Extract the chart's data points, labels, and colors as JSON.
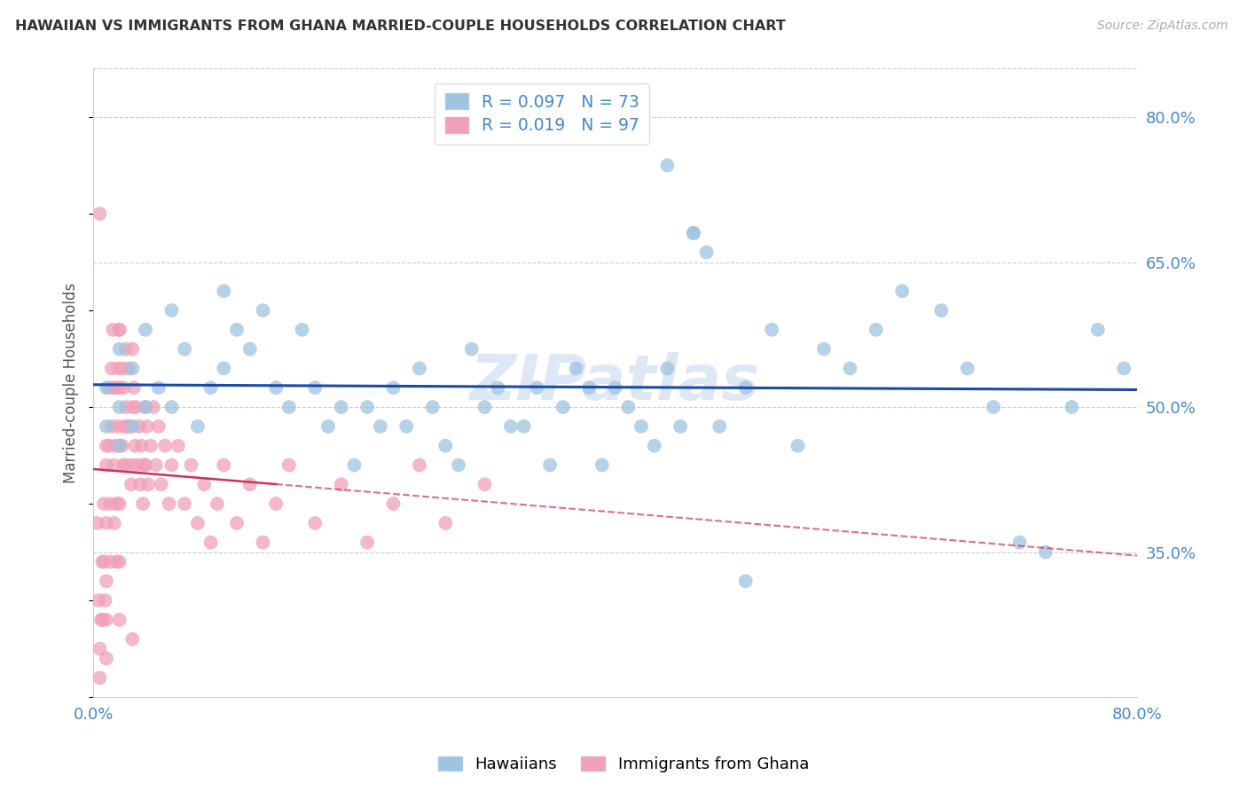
{
  "title": "HAWAIIAN VS IMMIGRANTS FROM GHANA MARRIED-COUPLE HOUSEHOLDS CORRELATION CHART",
  "source": "Source: ZipAtlas.com",
  "ylabel": "Married-couple Households",
  "legend_hawaiians": "Hawaiians",
  "legend_ghana": "Immigrants from Ghana",
  "xmin": 0.0,
  "xmax": 0.8,
  "ymin": 0.2,
  "ymax": 0.85,
  "yticks": [
    0.35,
    0.5,
    0.65,
    0.8
  ],
  "ytick_labels": [
    "35.0%",
    "50.0%",
    "65.0%",
    "80.0%"
  ],
  "color_hawaiians": "#9ec4e0",
  "color_ghana": "#f0a0b8",
  "color_trend_hawaiians": "#1a4aaa",
  "color_trend_ghana": "#cc3355",
  "watermark": "ZIPatlas",
  "hawaiians_x": [
    0.01,
    0.01,
    0.02,
    0.02,
    0.02,
    0.03,
    0.03,
    0.04,
    0.04,
    0.05,
    0.06,
    0.06,
    0.07,
    0.08,
    0.09,
    0.1,
    0.1,
    0.11,
    0.12,
    0.13,
    0.14,
    0.15,
    0.16,
    0.17,
    0.18,
    0.19,
    0.2,
    0.21,
    0.22,
    0.23,
    0.24,
    0.25,
    0.26,
    0.27,
    0.28,
    0.29,
    0.3,
    0.31,
    0.32,
    0.33,
    0.34,
    0.35,
    0.36,
    0.37,
    0.38,
    0.39,
    0.4,
    0.41,
    0.42,
    0.43,
    0.44,
    0.45,
    0.46,
    0.47,
    0.48,
    0.5,
    0.52,
    0.54,
    0.56,
    0.58,
    0.6,
    0.62,
    0.65,
    0.67,
    0.69,
    0.71,
    0.73,
    0.75,
    0.77,
    0.79,
    0.44,
    0.46,
    0.5
  ],
  "hawaiians_y": [
    0.52,
    0.48,
    0.56,
    0.5,
    0.46,
    0.54,
    0.48,
    0.58,
    0.5,
    0.52,
    0.6,
    0.5,
    0.56,
    0.48,
    0.52,
    0.62,
    0.54,
    0.58,
    0.56,
    0.6,
    0.52,
    0.5,
    0.58,
    0.52,
    0.48,
    0.5,
    0.44,
    0.5,
    0.48,
    0.52,
    0.48,
    0.54,
    0.5,
    0.46,
    0.44,
    0.56,
    0.5,
    0.52,
    0.48,
    0.48,
    0.52,
    0.44,
    0.5,
    0.54,
    0.52,
    0.44,
    0.52,
    0.5,
    0.48,
    0.46,
    0.54,
    0.48,
    0.68,
    0.66,
    0.48,
    0.52,
    0.58,
    0.46,
    0.56,
    0.54,
    0.58,
    0.62,
    0.6,
    0.54,
    0.5,
    0.36,
    0.35,
    0.5,
    0.58,
    0.54,
    0.75,
    0.68,
    0.32
  ],
  "ghana_x": [
    0.003,
    0.004,
    0.005,
    0.005,
    0.006,
    0.007,
    0.007,
    0.008,
    0.008,
    0.009,
    0.01,
    0.01,
    0.01,
    0.01,
    0.01,
    0.01,
    0.012,
    0.012,
    0.013,
    0.013,
    0.014,
    0.014,
    0.015,
    0.015,
    0.016,
    0.016,
    0.017,
    0.017,
    0.018,
    0.018,
    0.019,
    0.019,
    0.02,
    0.02,
    0.02,
    0.02,
    0.02,
    0.02,
    0.022,
    0.022,
    0.023,
    0.023,
    0.024,
    0.025,
    0.025,
    0.025,
    0.026,
    0.027,
    0.028,
    0.029,
    0.03,
    0.03,
    0.03,
    0.031,
    0.032,
    0.033,
    0.034,
    0.035,
    0.036,
    0.037,
    0.038,
    0.039,
    0.04,
    0.04,
    0.041,
    0.042,
    0.044,
    0.046,
    0.048,
    0.05,
    0.052,
    0.055,
    0.058,
    0.06,
    0.065,
    0.07,
    0.075,
    0.08,
    0.085,
    0.09,
    0.095,
    0.1,
    0.11,
    0.12,
    0.13,
    0.14,
    0.15,
    0.17,
    0.19,
    0.21,
    0.23,
    0.25,
    0.27,
    0.3,
    0.005,
    0.02,
    0.03
  ],
  "ghana_y": [
    0.38,
    0.3,
    0.25,
    0.22,
    0.28,
    0.34,
    0.28,
    0.4,
    0.34,
    0.3,
    0.44,
    0.38,
    0.32,
    0.28,
    0.24,
    0.46,
    0.52,
    0.46,
    0.4,
    0.34,
    0.54,
    0.48,
    0.58,
    0.52,
    0.44,
    0.38,
    0.52,
    0.46,
    0.4,
    0.34,
    0.54,
    0.48,
    0.58,
    0.52,
    0.46,
    0.4,
    0.34,
    0.28,
    0.54,
    0.46,
    0.52,
    0.44,
    0.48,
    0.56,
    0.5,
    0.44,
    0.48,
    0.54,
    0.48,
    0.42,
    0.56,
    0.5,
    0.44,
    0.52,
    0.46,
    0.5,
    0.44,
    0.48,
    0.42,
    0.46,
    0.4,
    0.44,
    0.5,
    0.44,
    0.48,
    0.42,
    0.46,
    0.5,
    0.44,
    0.48,
    0.42,
    0.46,
    0.4,
    0.44,
    0.46,
    0.4,
    0.44,
    0.38,
    0.42,
    0.36,
    0.4,
    0.44,
    0.38,
    0.42,
    0.36,
    0.4,
    0.44,
    0.38,
    0.42,
    0.36,
    0.4,
    0.44,
    0.38,
    0.42,
    0.7,
    0.58,
    0.26
  ]
}
